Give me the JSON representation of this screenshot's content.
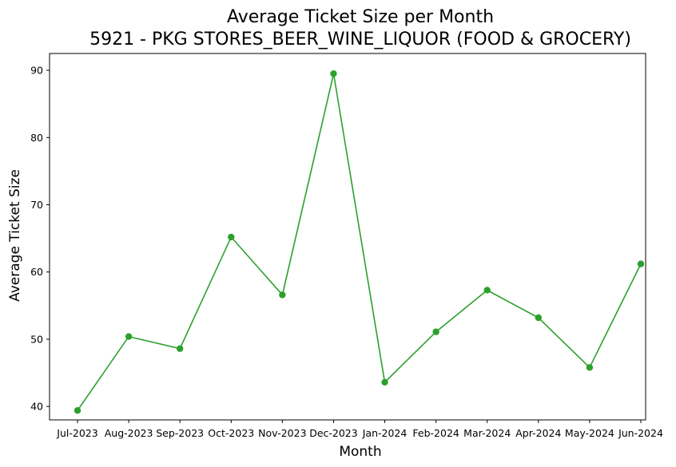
{
  "chart_data": {
    "type": "line",
    "title": "Average Ticket Size per Month",
    "subtitle": "5921 - PKG STORES_BEER_WINE_LIQUOR (FOOD & GROCERY)",
    "xlabel": "Month",
    "ylabel": "Average Ticket Size",
    "categories": [
      "Jul-2023",
      "Aug-2023",
      "Sep-2023",
      "Oct-2023",
      "Nov-2023",
      "Dec-2023",
      "Jan-2024",
      "Feb-2024",
      "Mar-2024",
      "Apr-2024",
      "May-2024",
      "Jun-2024"
    ],
    "series": [
      {
        "values": [
          39.4,
          50.4,
          48.6,
          65.2,
          56.6,
          89.5,
          43.6,
          51.1,
          57.3,
          53.2,
          45.8,
          61.2
        ],
        "color": "#2ca02c"
      }
    ],
    "ylim": [
      38.0,
      92.5
    ],
    "yticks": [
      40,
      50,
      60,
      70,
      80,
      90
    ],
    "grid": false,
    "legend": "none"
  }
}
